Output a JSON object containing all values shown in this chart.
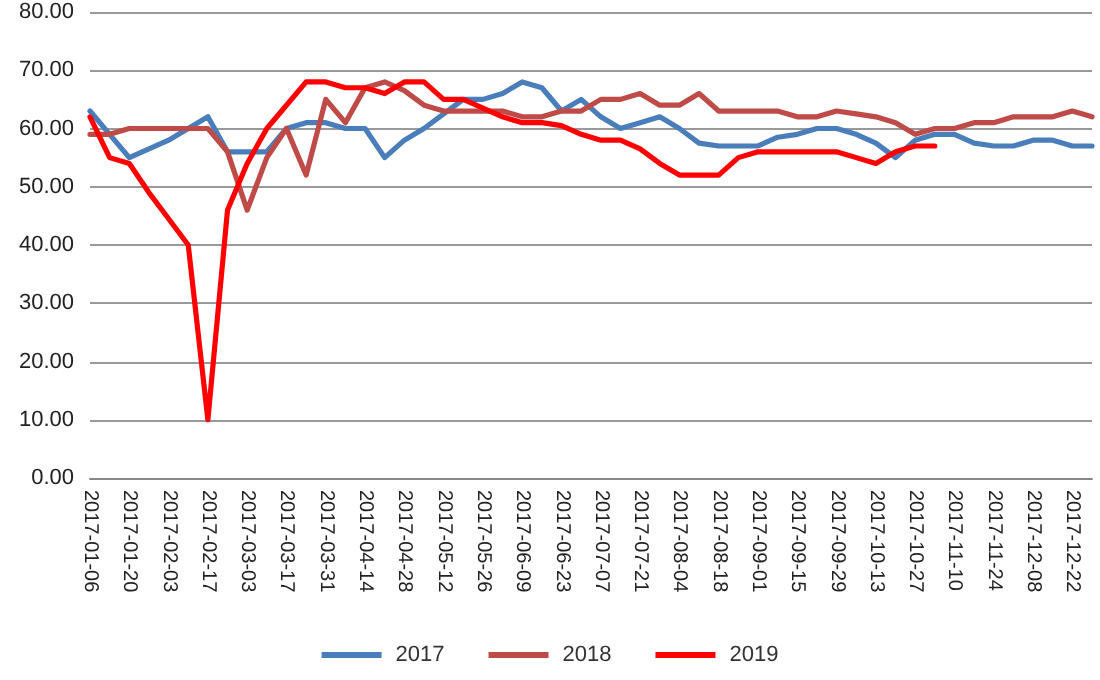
{
  "chart_data": {
    "type": "line",
    "categories": [
      "2017-01-06",
      null,
      "2017-01-20",
      null,
      "2017-02-03",
      null,
      "2017-02-17",
      null,
      "2017-03-03",
      null,
      "2017-03-17",
      null,
      "2017-03-31",
      null,
      "2017-04-14",
      null,
      "2017-04-28",
      null,
      "2017-05-12",
      null,
      "2017-05-26",
      null,
      "2017-06-09",
      null,
      "2017-06-23",
      null,
      "2017-07-07",
      null,
      "2017-07-21",
      null,
      "2017-08-04",
      null,
      "2017-08-18",
      null,
      "2017-09-01",
      null,
      "2017-09-15",
      null,
      "2017-09-29",
      null,
      "2017-10-13",
      null,
      "2017-10-27",
      null,
      "2017-11-10",
      null,
      "2017-11-24",
      null,
      "2017-12-08",
      null,
      "2017-12-22",
      null
    ],
    "series": [
      {
        "name": "2017",
        "color": "#4a7ebb",
        "values": [
          63,
          59,
          55,
          56.5,
          58,
          60,
          62,
          56,
          56,
          56,
          60,
          61,
          61,
          60,
          60,
          55,
          58,
          60,
          62.5,
          65,
          65,
          66,
          68,
          67,
          63,
          65,
          62,
          60,
          61,
          62,
          60,
          57.5,
          57,
          57,
          57,
          58.5,
          59,
          60,
          60,
          59,
          57.5,
          55,
          58,
          59,
          59,
          57.5,
          57,
          57,
          58,
          58,
          57,
          57
        ]
      },
      {
        "name": "2018",
        "color": "#be4b48",
        "values": [
          59,
          59,
          60,
          60,
          60,
          60,
          60,
          56,
          46,
          55,
          60,
          52,
          65,
          61,
          67,
          68,
          66.5,
          64,
          63,
          63,
          63,
          63,
          62,
          62,
          63,
          63,
          65,
          65,
          66,
          64,
          64,
          66,
          63,
          63,
          63,
          63,
          62,
          62,
          63,
          62.5,
          62,
          61,
          59,
          60,
          60,
          61,
          61,
          62,
          62,
          62,
          63,
          62
        ]
      },
      {
        "name": "2019",
        "color": "#ff0000",
        "values": [
          62,
          55,
          54,
          49,
          44.5,
          40,
          10,
          46,
          54,
          60,
          64,
          68,
          68,
          67,
          67,
          66,
          68,
          68,
          65,
          65,
          63.5,
          62,
          61,
          61,
          60.5,
          59,
          58,
          58,
          56.5,
          54,
          52,
          52,
          52,
          55,
          56,
          56,
          56,
          56,
          56,
          55,
          54,
          56,
          57,
          57,
          null,
          null,
          null,
          null,
          null,
          null,
          null,
          null
        ]
      }
    ],
    "ylim": [
      0,
      80
    ],
    "yticks": [
      {
        "value": 0,
        "label": "0.00"
      },
      {
        "value": 10,
        "label": "10.00"
      },
      {
        "value": 20,
        "label": "20.00"
      },
      {
        "value": 30,
        "label": "30.00"
      },
      {
        "value": 40,
        "label": "40.00"
      },
      {
        "value": 50,
        "label": "50.00"
      },
      {
        "value": 60,
        "label": "60.00"
      },
      {
        "value": 70,
        "label": "70.00"
      },
      {
        "value": 80,
        "label": "80.00"
      }
    ],
    "grid": "y",
    "legend": "bottom",
    "marker": "none",
    "line_style": "solid"
  }
}
